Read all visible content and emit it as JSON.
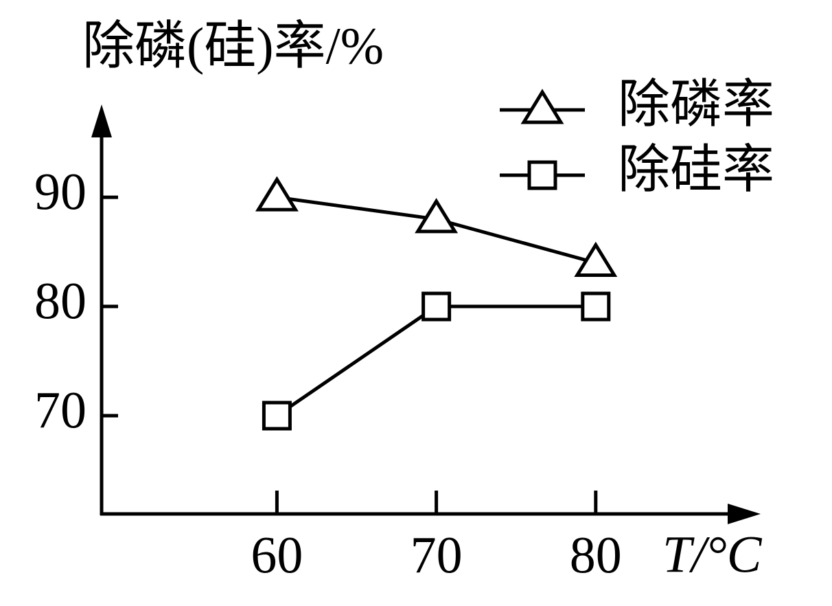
{
  "chart_data": {
    "type": "line",
    "title": "除磷(硅)率/%",
    "x_label": "T/°C",
    "x": [
      60,
      70,
      80
    ],
    "series": [
      {
        "name": "除磷率",
        "color": "#000000",
        "marker": "triangle",
        "values": [
          90,
          88,
          84
        ]
      },
      {
        "name": "除硅率",
        "color": "#000000",
        "marker": "square",
        "values": [
          70,
          80,
          80
        ]
      }
    ],
    "xlim": [
      49,
      90
    ],
    "xticks": [
      60,
      70,
      80
    ],
    "ylim": [
      61,
      98
    ],
    "yticks": [
      70,
      80,
      90
    ],
    "grid": false,
    "legend": "upper right"
  }
}
